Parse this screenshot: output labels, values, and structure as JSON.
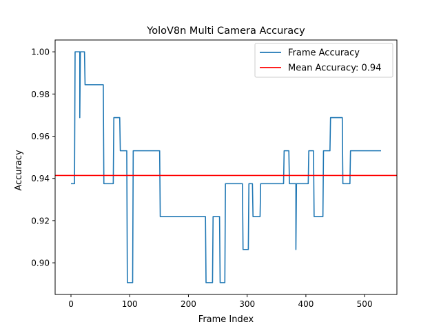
{
  "chart_data": {
    "type": "line",
    "title": "YoloV8n Multi Camera Accuracy",
    "xlabel": "Frame Index",
    "ylabel": "Accuracy",
    "xlim": [
      -27,
      555
    ],
    "ylim": [
      0.885,
      1.0056
    ],
    "xticks": [
      0,
      100,
      200,
      300,
      400,
      500
    ],
    "xtick_labels": [
      "0",
      "100",
      "200",
      "300",
      "400",
      "500"
    ],
    "yticks": [
      0.9,
      0.92,
      0.94,
      0.96,
      0.98,
      1.0
    ],
    "ytick_labels": [
      "0.90",
      "0.92",
      "0.94",
      "0.96",
      "0.98",
      "1.00"
    ],
    "grid": false,
    "legend_position": "top-right",
    "series": [
      {
        "name": "Frame Accuracy",
        "color": "#1f77b4",
        "style": "step",
        "points": [
          [
            0,
            0.9375
          ],
          [
            6,
            0.9375
          ],
          [
            7,
            1.0
          ],
          [
            15,
            1.0
          ],
          [
            15,
            0.9688
          ],
          [
            16,
            1.0
          ],
          [
            23,
            1.0
          ],
          [
            24,
            0.9844
          ],
          [
            55,
            0.9844
          ],
          [
            56,
            0.9375
          ],
          [
            72,
            0.9375
          ],
          [
            73,
            0.9688
          ],
          [
            83,
            0.9688
          ],
          [
            84,
            0.9531
          ],
          [
            95,
            0.9531
          ],
          [
            96,
            0.8906
          ],
          [
            105,
            0.8906
          ],
          [
            106,
            0.9531
          ],
          [
            151,
            0.9531
          ],
          [
            152,
            0.9219
          ],
          [
            229,
            0.9219
          ],
          [
            230,
            0.8906
          ],
          [
            241,
            0.8906
          ],
          [
            242,
            0.9219
          ],
          [
            253,
            0.9219
          ],
          [
            254,
            0.8906
          ],
          [
            262,
            0.8906
          ],
          [
            263,
            0.9375
          ],
          [
            292,
            0.9375
          ],
          [
            293,
            0.9063
          ],
          [
            302,
            0.9063
          ],
          [
            303,
            0.9375
          ],
          [
            309,
            0.9375
          ],
          [
            310,
            0.9219
          ],
          [
            322,
            0.9219
          ],
          [
            323,
            0.9375
          ],
          [
            362,
            0.9375
          ],
          [
            363,
            0.9531
          ],
          [
            371,
            0.9531
          ],
          [
            372,
            0.9375
          ],
          [
            383,
            0.9375
          ],
          [
            383,
            0.9063
          ],
          [
            384,
            0.9375
          ],
          [
            404,
            0.9375
          ],
          [
            405,
            0.9531
          ],
          [
            413,
            0.9531
          ],
          [
            414,
            0.9219
          ],
          [
            429,
            0.9219
          ],
          [
            430,
            0.9531
          ],
          [
            441,
            0.9531
          ],
          [
            442,
            0.9688
          ],
          [
            462,
            0.9688
          ],
          [
            463,
            0.9375
          ],
          [
            475,
            0.9375
          ],
          [
            476,
            0.9531
          ],
          [
            528,
            0.9531
          ]
        ]
      },
      {
        "name": "Mean Accuracy: 0.94",
        "color": "#ff0000",
        "style": "hline",
        "value": 0.9414
      }
    ]
  }
}
